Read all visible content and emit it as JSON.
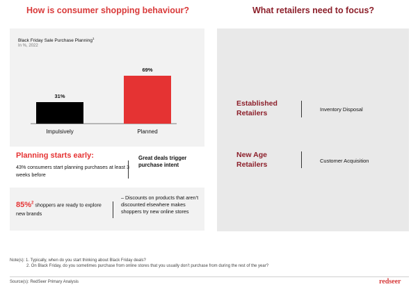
{
  "headings": {
    "left": "How is consumer shopping behaviour?",
    "right": "What retailers need to focus?"
  },
  "chart_data": {
    "type": "bar",
    "title": "Black Friday Sale Purchase Planning",
    "title_sup": "1",
    "subtitle": "In %, 2022",
    "categories": [
      "Impulsively",
      "Planned"
    ],
    "values": [
      31,
      69
    ],
    "value_labels": [
      "31%",
      "69%"
    ],
    "colors": [
      "#000000",
      "#e53333"
    ],
    "ylim": [
      0,
      100
    ],
    "grid": false,
    "legend": "none"
  },
  "planning": {
    "heading": "Planning starts early:",
    "text": "43% consumers start planning purchases at least 3 weeks before",
    "right": "Great deals trigger purchase intent"
  },
  "explore": {
    "percent": "85%",
    "percent_sup": "2",
    "text": " shoppers are ready to explore new brands",
    "right": "– Discounts on products that aren’t discounted elsewhere makes shoppers try new online stores"
  },
  "focus": {
    "items": [
      {
        "label": "Established Retailers",
        "value": "Inventory Disposal"
      },
      {
        "label": "New Age Retailers",
        "value": "Customer Acquisition"
      }
    ]
  },
  "notes": {
    "line1": "Note(s): 1. Typically, when do you start thinking about Black Friday deals?",
    "line2": "2. On Black Friday, do you sometimes purchase from online stores that you usually don’t purchase from during the rest of the year?",
    "source": "Source(s): RedSeer Primary Analysis",
    "logo": "redseer"
  },
  "accent_colors": {
    "red": "#e53333",
    "maroon": "#8c1f2a"
  }
}
